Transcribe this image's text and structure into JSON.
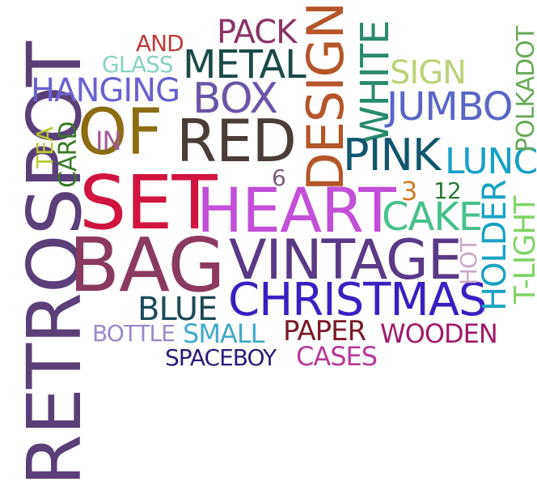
{
  "words": {
    "retrospot": {
      "text": "RETROSPOT",
      "color": "#5b3f78"
    },
    "set": {
      "text": "SET",
      "color": "#d1143f"
    },
    "bag": {
      "text": "BAG",
      "color": "#8a3a5e"
    },
    "of": {
      "text": "OF",
      "color": "#8a6d12"
    },
    "red": {
      "text": "RED",
      "color": "#4a3c36"
    },
    "heart": {
      "text": "HEART",
      "color": "#c34fd8"
    },
    "vintage": {
      "text": "VINTAGE",
      "color": "#5a3a86"
    },
    "christmas": {
      "text": "CHRISTMAS",
      "color": "#3a1fc0"
    },
    "design": {
      "text": "DESIGN",
      "color": "#b4552a"
    },
    "white": {
      "text": "WHITE",
      "color": "#2a8a6e"
    },
    "pink": {
      "text": "PINK",
      "color": "#11566c"
    },
    "metal": {
      "text": "METAL",
      "color": "#1c4a48"
    },
    "box": {
      "text": "BOX",
      "color": "#6a55a8"
    },
    "hanging": {
      "text": "HANGING",
      "color": "#6a62d0"
    },
    "pack": {
      "text": "PACK",
      "color": "#8a3468"
    },
    "jumbo": {
      "text": "JUMBO",
      "color": "#5a66c4"
    },
    "sign": {
      "text": "SIGN",
      "color": "#bcd27a"
    },
    "cake": {
      "text": "CAKE",
      "color": "#48c08c"
    },
    "lunch": {
      "text": "LUNC",
      "color": "#18a0c8"
    },
    "holder": {
      "text": "HOLDER",
      "color": "#1aa2c2"
    },
    "tlight": {
      "text": "T-LIGHT",
      "color": "#80d268"
    },
    "polkadot": {
      "text": "POLKADOT",
      "color": "#6aa858"
    },
    "blue": {
      "text": "BLUE",
      "color": "#1d4a58"
    },
    "bottle": {
      "text": "BOTTLE",
      "color": "#9a88cc"
    },
    "small": {
      "text": "SMALL",
      "color": "#42a8c8"
    },
    "paper": {
      "text": "PAPER",
      "color": "#7a1a28"
    },
    "wooden": {
      "text": "WOODEN",
      "color": "#a01a6a"
    },
    "spaceboy": {
      "text": "SPACEBOY",
      "color": "#2c1a78"
    },
    "cases": {
      "text": "CASES",
      "color": "#b83a98"
    },
    "glass": {
      "text": "GLASS",
      "color": "#8ad2c2"
    },
    "and": {
      "text": "AND",
      "color": "#c03a3a"
    },
    "in": {
      "text": "IN",
      "color": "#a45a98"
    },
    "card": {
      "text": "CARD",
      "color": "#3a7a28"
    },
    "tea": {
      "text": "TEA",
      "color": "#b8c832"
    },
    "six": {
      "text": "6",
      "color": "#7a5a78"
    },
    "three": {
      "text": "3",
      "color": "#d27a2a"
    },
    "twelve": {
      "text": "12",
      "color": "#2a7a3a"
    },
    "hot": {
      "text": "HOT",
      "color": "#c8a8c8"
    }
  }
}
